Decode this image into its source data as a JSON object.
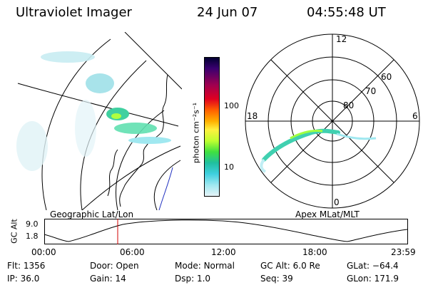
{
  "header": {
    "instrument": "Ultraviolet Imager",
    "date": "24 Jun 07",
    "time": "04:55:48 UT"
  },
  "colorbar": {
    "unit_label": "photon cm⁻²s⁻¹",
    "ticks": [
      "100",
      "10"
    ],
    "scale": "log",
    "colors": [
      "#000030",
      "#3a0070",
      "#a00050",
      "#e00020",
      "#ff6000",
      "#ffb000",
      "#fff040",
      "#c0ff30",
      "#40e040",
      "#20c0a0",
      "#40d0e0",
      "#a0e8f0",
      "#e8f4f8"
    ]
  },
  "geo_panel": {
    "caption": "Geographic Lat/Lon"
  },
  "polar_panel": {
    "caption": "Apex MLat/MLT",
    "lat_labels": [
      "60",
      "70",
      "80"
    ],
    "mlt_labels": [
      "12",
      "18",
      "6",
      "0"
    ]
  },
  "altitude_plot": {
    "ylabel": "GC Alt",
    "yticks": [
      "9.0",
      "1.8"
    ],
    "xticks": [
      "00:00",
      "06:00",
      "12:00",
      "18:00",
      "23:59"
    ],
    "current_time_marker": "04:55"
  },
  "status": {
    "row1": [
      {
        "key": "Flt:",
        "value": "1356"
      },
      {
        "key": "Door:",
        "value": "Open"
      },
      {
        "key": "Mode:",
        "value": "Normal"
      },
      {
        "key": "GC Alt:",
        "value": "6.0 Re"
      },
      {
        "key": "GLat:",
        "value": "−64.4"
      }
    ],
    "row2": [
      {
        "key": "IP:",
        "value": "36.0"
      },
      {
        "key": "Gain:",
        "value": "14"
      },
      {
        "key": "Dsp:",
        "value": "1.0"
      },
      {
        "key": "Seq:",
        "value": "39"
      },
      {
        "key": "GLon:",
        "value": "171.9"
      }
    ]
  }
}
